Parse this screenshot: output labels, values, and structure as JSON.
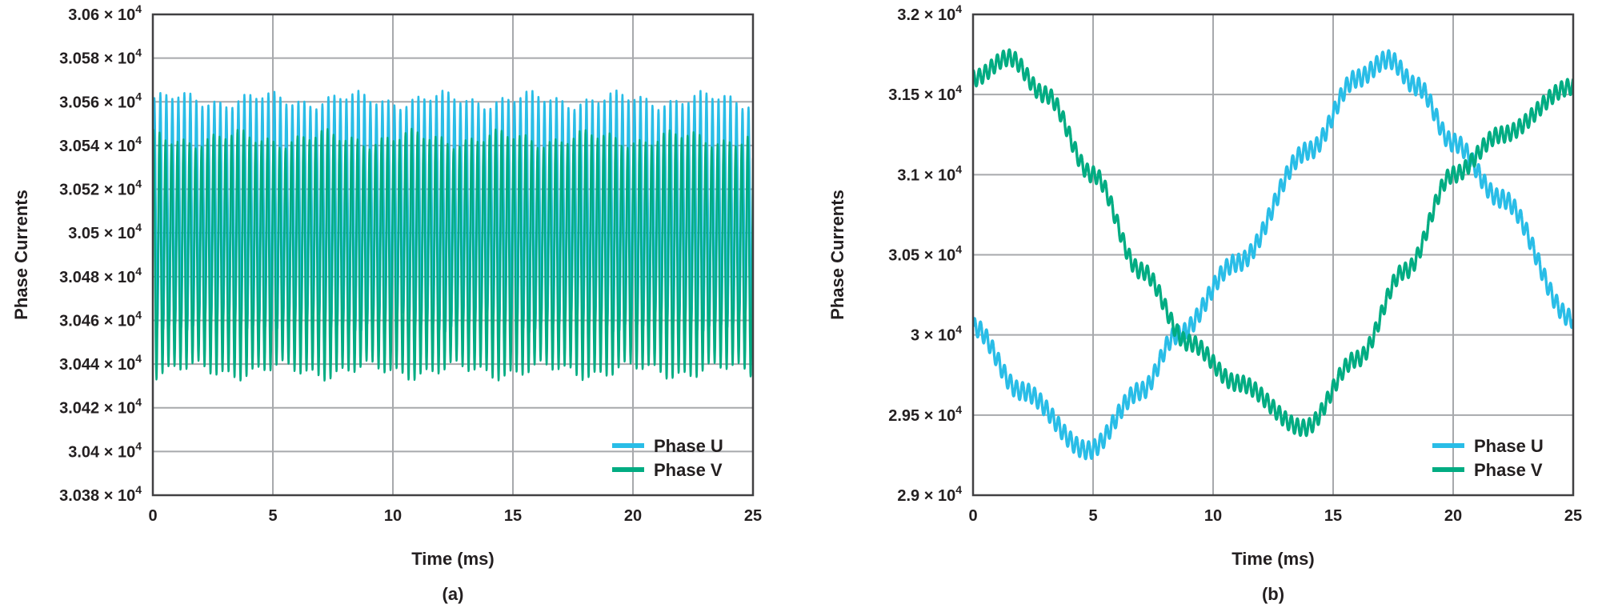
{
  "colors": {
    "phase_u": "#29bde7",
    "phase_v": "#00ac82",
    "grid": "#a7a9ac",
    "frame": "#414042"
  },
  "chart_data": [
    {
      "type": "line",
      "panel": "(a)",
      "xlabel": "Time (ms)",
      "ylabel": "Phase Currents",
      "xlim": [
        0,
        25
      ],
      "ylim": [
        30380,
        30600
      ],
      "x_ticks": [
        0,
        5,
        10,
        15,
        20,
        25
      ],
      "y_ticks": [
        {
          "mantissa": "3.038",
          "value": 30380
        },
        {
          "mantissa": "3.04",
          "value": 30400
        },
        {
          "mantissa": "3.042",
          "value": 30420
        },
        {
          "mantissa": "3.044",
          "value": 30440
        },
        {
          "mantissa": "3.046",
          "value": 30460
        },
        {
          "mantissa": "3.048",
          "value": 30480
        },
        {
          "mantissa": "3.05",
          "value": 30500
        },
        {
          "mantissa": "3.052",
          "value": 30520
        },
        {
          "mantissa": "3.054",
          "value": 30540
        },
        {
          "mantissa": "3.056",
          "value": 30560
        },
        {
          "mantissa": "3.058",
          "value": 30580
        },
        {
          "mantissa": "3.06",
          "value": 30600
        }
      ],
      "exponent_base": "× 10",
      "exponent": "4",
      "grid": true,
      "legend_position": "bottom-right",
      "series": [
        {
          "name": "Phase U",
          "mean": 30510,
          "ripple_amplitude": 51,
          "ripple_period_ms": 0.25,
          "trend": "constant"
        },
        {
          "name": "Phase V",
          "mean": 30490,
          "ripple_amplitude": 53,
          "ripple_period_ms": 0.25,
          "trend": "constant"
        }
      ]
    },
    {
      "type": "line",
      "panel": "(b)",
      "xlabel": "Time (ms)",
      "ylabel": "Phase Currents",
      "xlim": [
        0,
        25
      ],
      "ylim": [
        29000,
        32000
      ],
      "x_ticks": [
        0,
        5,
        10,
        15,
        20,
        25
      ],
      "y_ticks": [
        {
          "mantissa": "2.9",
          "value": 29000
        },
        {
          "mantissa": "2.95",
          "value": 29500
        },
        {
          "mantissa": "3",
          "value": 30000
        },
        {
          "mantissa": "3.05",
          "value": 30500
        },
        {
          "mantissa": "3.1",
          "value": 31000
        },
        {
          "mantissa": "3.15",
          "value": 31500
        },
        {
          "mantissa": "3.2",
          "value": 32000
        }
      ],
      "exponent_base": "× 10",
      "exponent": "4",
      "grid": true,
      "legend_position": "bottom-right",
      "series": [
        {
          "name": "Phase U",
          "x": [
            0,
            2,
            4.8,
            7,
            8.5,
            11,
            14,
            16,
            17.3,
            18.5,
            20,
            22,
            25
          ],
          "y": [
            30050,
            29650,
            29280,
            29650,
            30000,
            30450,
            31150,
            31600,
            31720,
            31550,
            31200,
            30850,
            30100
          ],
          "ripple_amplitude": 55
        },
        {
          "name": "Phase V",
          "x": [
            0,
            1.5,
            3,
            5,
            7,
            9,
            11,
            13.8,
            16,
            18,
            20,
            22,
            25
          ],
          "y": [
            31600,
            31730,
            31500,
            31000,
            30400,
            29950,
            29700,
            29420,
            29850,
            30400,
            31000,
            31250,
            31550
          ],
          "ripple_amplitude": 50
        }
      ]
    }
  ],
  "captions": [
    "(a)",
    "(b)"
  ]
}
